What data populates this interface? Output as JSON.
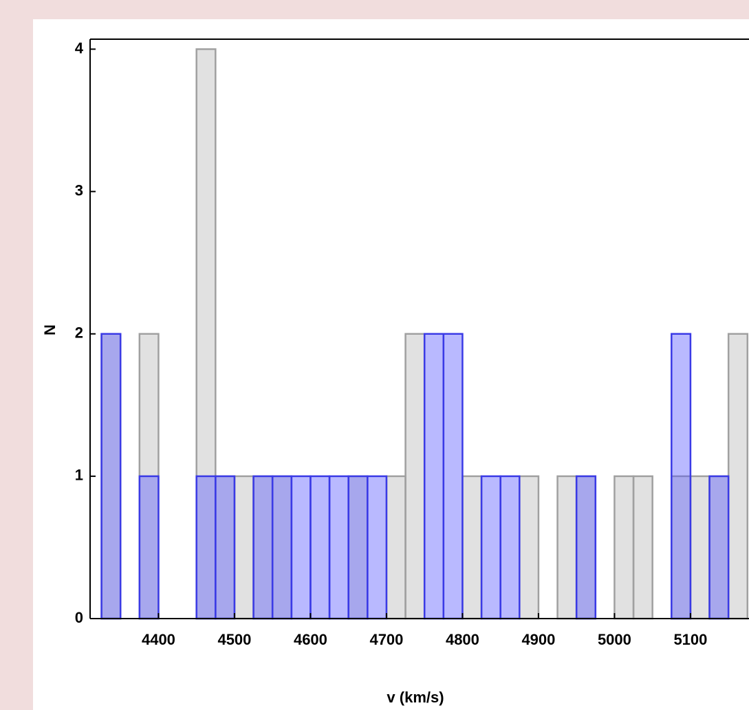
{
  "chart_data": {
    "type": "histogram",
    "x_label": "v (km/s)",
    "y_label": "N",
    "bins": [
      4325,
      4350,
      4375,
      4400,
      4425,
      4450,
      4475,
      4500,
      4525,
      4550,
      4575,
      4600,
      4625,
      4650,
      4675,
      4700,
      4725,
      4750,
      4775,
      4800,
      4825,
      4850,
      4875,
      4900,
      4925,
      4950,
      4975,
      5000,
      5025,
      5050,
      5075,
      5100,
      5125,
      5150,
      5175
    ],
    "series": [
      {
        "color": "#b4b4b4",
        "edge": "#a0a0a0",
        "values": [
          2,
          0,
          2,
          0,
          0,
          4,
          1,
          1,
          1,
          1,
          0,
          0,
          0,
          1,
          0,
          1,
          2,
          0,
          0,
          1,
          0,
          0,
          1,
          0,
          1,
          1,
          0,
          1,
          1,
          0,
          1,
          1,
          1,
          2
        ]
      },
      {
        "color": "#5050ff",
        "edge": "#3a3ae6",
        "values": [
          2,
          0,
          1,
          0,
          0,
          1,
          1,
          0,
          1,
          1,
          1,
          1,
          1,
          1,
          1,
          0,
          0,
          2,
          2,
          0,
          1,
          1,
          0,
          0,
          0,
          1,
          0,
          0,
          0,
          0,
          2,
          0,
          1,
          0
        ]
      }
    ],
    "xlim": [
      4310,
      5177
    ],
    "ylim": [
      0,
      4.07
    ],
    "xticks": [
      4400,
      4500,
      4600,
      4700,
      4800,
      4900,
      5000,
      5100
    ],
    "yticks": [
      0,
      1,
      2,
      3,
      4
    ]
  }
}
